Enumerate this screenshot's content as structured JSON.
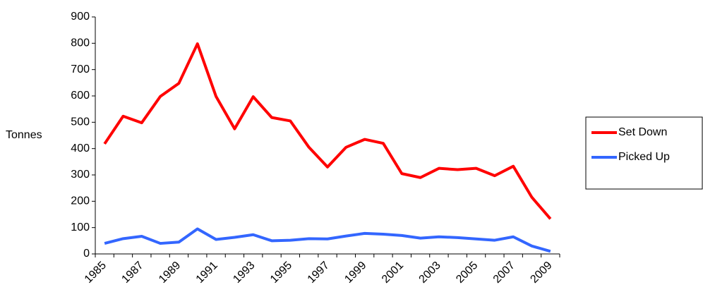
{
  "chart_data": {
    "type": "line",
    "y_label": "Tonnes",
    "categories": [
      "1985",
      null,
      "1987",
      null,
      "1989",
      null,
      "1991",
      null,
      "1993",
      null,
      "1995",
      null,
      "1997",
      null,
      "1999",
      null,
      "2001",
      null,
      "2003",
      null,
      "2005",
      null,
      "2007",
      null,
      "2009"
    ],
    "series": [
      {
        "name": "Set Down",
        "color": "#ff0000",
        "values": [
          418,
          523,
          498,
          598,
          648,
          798,
          598,
          475,
          597,
          518,
          505,
          405,
          330,
          405,
          435,
          420,
          305,
          290,
          325,
          320,
          325,
          297,
          333,
          215,
          133
        ]
      },
      {
        "name": "Picked Up",
        "color": "#3366ff",
        "values": [
          40,
          58,
          67,
          40,
          45,
          95,
          55,
          63,
          73,
          50,
          52,
          58,
          57,
          68,
          78,
          75,
          70,
          60,
          65,
          62,
          57,
          52,
          65,
          30,
          10
        ]
      }
    ],
    "ylim": [
      0,
      900
    ],
    "yticks": [
      0,
      100,
      200,
      300,
      400,
      500,
      600,
      700,
      800,
      900
    ],
    "grid": false,
    "legend": "right"
  }
}
